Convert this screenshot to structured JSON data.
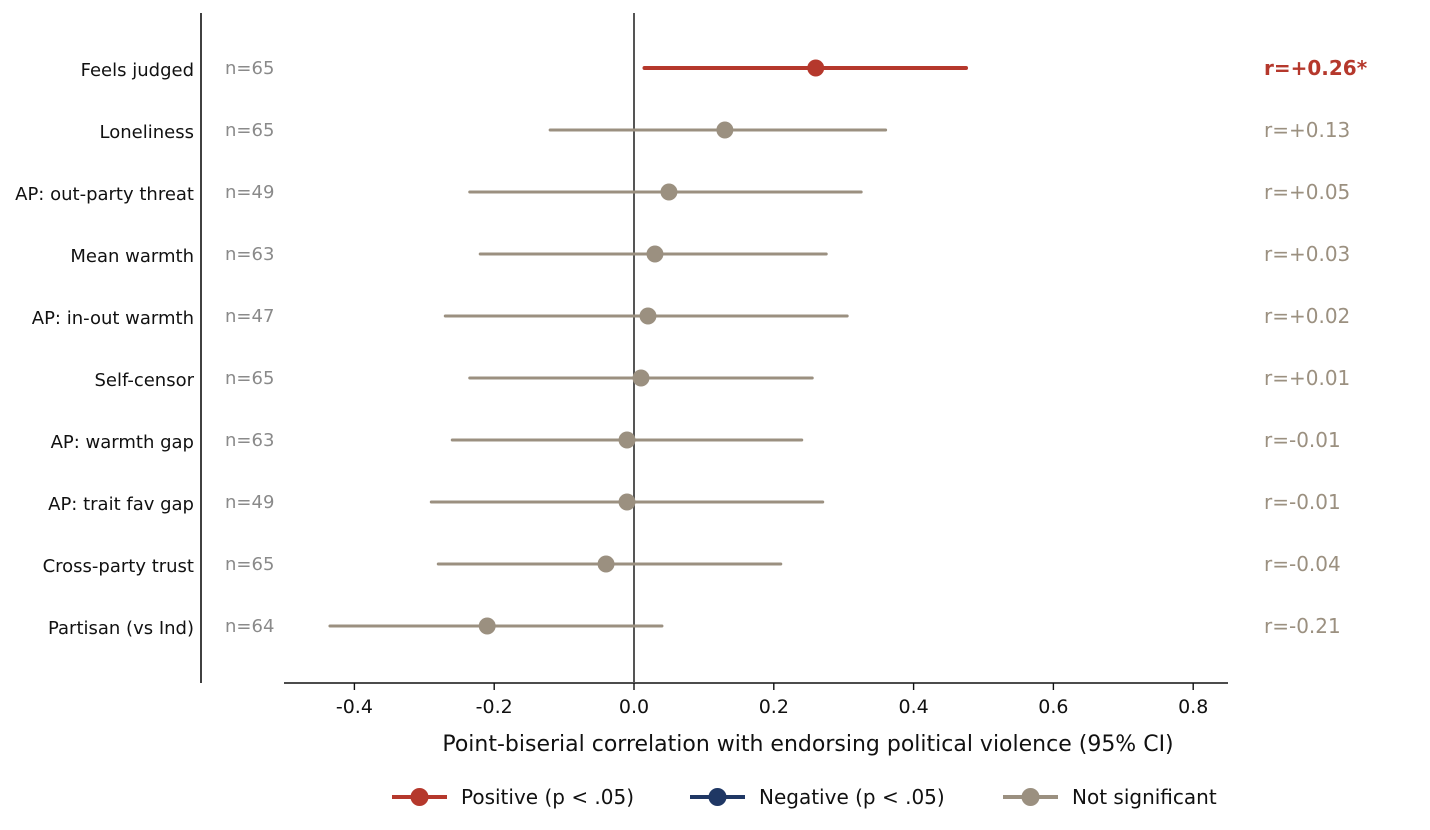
{
  "chart_data": {
    "type": "forest",
    "xlabel": "Point-biserial correlation with endorsing political violence (95% CI)",
    "xlim": [
      -0.5,
      0.85
    ],
    "xticks": [
      -0.4,
      -0.2,
      0.0,
      0.2,
      0.4,
      0.6,
      0.8
    ],
    "xtick_labels": [
      "-0.4",
      "-0.2",
      "0.0",
      "0.2",
      "0.4",
      "0.6",
      "0.8"
    ],
    "reference_line": 0.0,
    "grid": false,
    "colors": {
      "positive": "#b5382c",
      "negative": "#1f3764",
      "not_significant": "#9b9080",
      "n_text": "#8a8a8a",
      "reference": "#555555"
    },
    "rows": [
      {
        "label": "Feels judged",
        "n": "n=65",
        "r": 0.26,
        "ci": [
          0.015,
          0.475
        ],
        "r_label": "r=+0.26*",
        "status": "positive"
      },
      {
        "label": "Loneliness",
        "n": "n=65",
        "r": 0.13,
        "ci": [
          -0.12,
          0.36
        ],
        "r_label": "r=+0.13",
        "status": "not_significant"
      },
      {
        "label": "AP: out-party threat",
        "n": "n=49",
        "r": 0.05,
        "ci": [
          -0.235,
          0.325
        ],
        "r_label": "r=+0.05",
        "status": "not_significant"
      },
      {
        "label": "Mean warmth",
        "n": "n=63",
        "r": 0.03,
        "ci": [
          -0.22,
          0.275
        ],
        "r_label": "r=+0.03",
        "status": "not_significant"
      },
      {
        "label": "AP: in-out warmth",
        "n": "n=47",
        "r": 0.02,
        "ci": [
          -0.27,
          0.305
        ],
        "r_label": "r=+0.02",
        "status": "not_significant"
      },
      {
        "label": "Self-censor",
        "n": "n=65",
        "r": 0.01,
        "ci": [
          -0.235,
          0.255
        ],
        "r_label": "r=+0.01",
        "status": "not_significant"
      },
      {
        "label": "AP: warmth gap",
        "n": "n=63",
        "r": -0.01,
        "ci": [
          -0.26,
          0.24
        ],
        "r_label": "r=-0.01",
        "status": "not_significant"
      },
      {
        "label": "AP: trait fav gap",
        "n": "n=49",
        "r": -0.01,
        "ci": [
          -0.29,
          0.27
        ],
        "r_label": "r=-0.01",
        "status": "not_significant"
      },
      {
        "label": "Cross-party trust",
        "n": "n=65",
        "r": -0.04,
        "ci": [
          -0.28,
          0.21
        ],
        "r_label": "r=-0.04",
        "status": "not_significant"
      },
      {
        "label": "Partisan (vs Ind)",
        "n": "n=64",
        "r": -0.21,
        "ci": [
          -0.435,
          0.04
        ],
        "r_label": "r=-0.21",
        "status": "not_significant"
      }
    ],
    "legend": {
      "placement": "bottom-center",
      "entries": [
        {
          "label": "Positive (p < .05)",
          "status": "positive"
        },
        {
          "label": "Negative (p < .05)",
          "status": "negative"
        },
        {
          "label": "Not significant",
          "status": "not_significant"
        }
      ]
    }
  }
}
